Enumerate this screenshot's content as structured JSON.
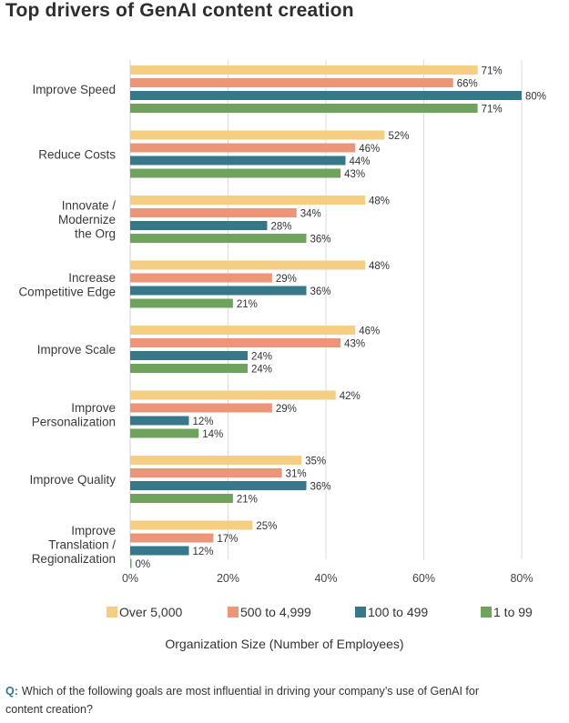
{
  "chart_data": {
    "type": "bar",
    "orientation": "horizontal",
    "title": "Top drivers of GenAI content creation",
    "xlabel": "Organization Size (Number of Employees)",
    "xlim": [
      0,
      80
    ],
    "xticks": [
      "0%",
      "20%",
      "40%",
      "60%",
      "80%"
    ],
    "grid": true,
    "legend_position": "bottom",
    "value_suffix": "%",
    "categories": [
      [
        "Improve Speed"
      ],
      [
        "Reduce Costs"
      ],
      [
        "Innovate /",
        "Modernize",
        "the Org"
      ],
      [
        "Increase",
        "Competitive Edge"
      ],
      [
        "Improve Scale"
      ],
      [
        "Improve",
        "Personalization"
      ],
      [
        "Improve Quality"
      ],
      [
        "Improve",
        "Translation /",
        "Regionalization"
      ]
    ],
    "series": [
      {
        "name": "Over 5,000",
        "color": "#f5cd83",
        "values": [
          71,
          52,
          48,
          48,
          46,
          42,
          35,
          25
        ]
      },
      {
        "name": "500 to 4,999",
        "color": "#ec9578",
        "values": [
          66,
          46,
          34,
          29,
          43,
          29,
          31,
          17
        ]
      },
      {
        "name": "100 to 499",
        "color": "#36788a",
        "values": [
          80,
          44,
          28,
          36,
          24,
          12,
          36,
          12
        ]
      },
      {
        "name": "1 to 99",
        "color": "#6fa35d",
        "values": [
          71,
          43,
          36,
          21,
          24,
          14,
          21,
          0
        ]
      }
    ]
  },
  "question": {
    "prefix": "Q:",
    "text": "Which of the following goals are most influential in driving your company’s use of GenAI for content creation?"
  }
}
